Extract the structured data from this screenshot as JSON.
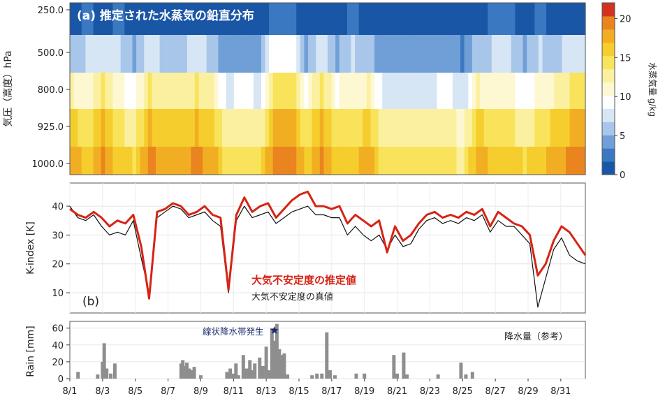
{
  "chart_data": [
    {
      "type": "heatmap",
      "title": "(a) 推定された水蒸気の鉛直分布",
      "ylabel": "気圧（高度）hPa",
      "yticks": [
        "250.0",
        "500.0",
        "800.0",
        "925.0",
        "1000.0"
      ],
      "colorbar": {
        "label": "水蒸気量 g/kg",
        "range": [
          0,
          22
        ],
        "ticks": [
          "0",
          "5",
          "10",
          "15",
          "20"
        ],
        "colors": [
          "#1a56a6",
          "#3a78c2",
          "#6f9fd6",
          "#a7c6e9",
          "#d6e6f5",
          "#ffffff",
          "#fdf8d2",
          "#fbf0a0",
          "#f8e35a",
          "#f5cd2c",
          "#f2ae22",
          "#e9841e",
          "#d2321f"
        ]
      },
      "columns_per_day": 4,
      "profiles": [
        [
          2,
          7,
          11,
          14,
          16
        ],
        [
          1,
          5,
          9,
          13,
          15
        ],
        [
          1,
          6,
          12,
          16,
          18
        ],
        [
          1,
          4,
          8,
          12,
          14
        ],
        [
          1,
          8,
          14,
          17,
          19
        ],
        [
          2,
          10,
          15,
          18,
          20
        ],
        [
          1,
          5,
          10,
          14,
          16
        ],
        [
          1,
          3,
          7,
          11,
          13
        ]
      ],
      "day_pattern": [
        2,
        0,
        4,
        0,
        1,
        4,
        2,
        2,
        4,
        2,
        3,
        1,
        3,
        5,
        5,
        6,
        4,
        6,
        0,
        2,
        3,
        3,
        3,
        3,
        1,
        7,
        2,
        0,
        0,
        1,
        0,
        2,
        4
      ]
    },
    {
      "type": "line",
      "ylabel": "K-index [K]",
      "ylim": [
        3,
        48
      ],
      "yticks": [
        10,
        20,
        30,
        40
      ],
      "label": "(b)",
      "series": [
        {
          "name": "大気不安定度の推定値",
          "color": "#d62415",
          "values": [
            39,
            37,
            36,
            38,
            36,
            33,
            35,
            34,
            37,
            26,
            8,
            38,
            39,
            41,
            40,
            37,
            38,
            40,
            37,
            36,
            11,
            37,
            43,
            38,
            40,
            41,
            36,
            39,
            42,
            44,
            45,
            40,
            40,
            39,
            40,
            34,
            37,
            35,
            33,
            35,
            24,
            33,
            28,
            30,
            34,
            37,
            38,
            36,
            37,
            36,
            38,
            37,
            39,
            33,
            38,
            36,
            34,
            33,
            30,
            16,
            20,
            28,
            33,
            31,
            27,
            23
          ]
        },
        {
          "name": "大気不安定度の真値",
          "color": "#111111",
          "values": [
            40,
            36,
            35,
            37,
            33,
            30,
            31,
            30,
            35,
            22,
            10,
            36,
            38,
            40,
            39,
            36,
            37,
            38,
            35,
            33,
            10,
            35,
            40,
            36,
            37,
            38,
            34,
            36,
            38,
            39,
            40,
            37,
            37,
            36,
            36,
            30,
            33,
            30,
            28,
            30,
            25,
            30,
            26,
            27,
            32,
            35,
            36,
            34,
            35,
            34,
            36,
            35,
            37,
            31,
            35,
            33,
            33,
            30,
            27,
            5,
            15,
            25,
            29,
            23,
            21,
            20
          ]
        }
      ]
    },
    {
      "type": "bar",
      "ylabel": "Rain [mm]",
      "ylim": [
        0,
        68
      ],
      "yticks": [
        0,
        20,
        40,
        60
      ],
      "xlabels": [
        "8/1",
        "8/3",
        "8/5",
        "8/7",
        "8/9",
        "8/11",
        "8/13",
        "8/15",
        "8/17",
        "8/19",
        "8/21",
        "8/23",
        "8/25",
        "8/27",
        "8/29",
        "8/31"
      ],
      "legend": "降水量（参考）",
      "annotation": "線状降水帯発生",
      "star_at_day": 13.5,
      "bars": [
        [
          1.5,
          8
        ],
        [
          2.7,
          5
        ],
        [
          3.0,
          20
        ],
        [
          3.1,
          42
        ],
        [
          3.25,
          12
        ],
        [
          3.5,
          6
        ],
        [
          3.75,
          18
        ],
        [
          7.8,
          18
        ],
        [
          7.9,
          22
        ],
        [
          8.0,
          15
        ],
        [
          8.15,
          19
        ],
        [
          8.3,
          12
        ],
        [
          8.45,
          10
        ],
        [
          8.6,
          14
        ],
        [
          9.0,
          4
        ],
        [
          10.6,
          8
        ],
        [
          10.8,
          12
        ],
        [
          11.0,
          6
        ],
        [
          11.15,
          18
        ],
        [
          11.3,
          4
        ],
        [
          11.6,
          28
        ],
        [
          11.8,
          12
        ],
        [
          12.0,
          22
        ],
        [
          12.15,
          10
        ],
        [
          12.3,
          18
        ],
        [
          12.6,
          25
        ],
        [
          12.8,
          15
        ],
        [
          13.0,
          38
        ],
        [
          13.15,
          10
        ],
        [
          13.35,
          60
        ],
        [
          13.5,
          45
        ],
        [
          13.65,
          65
        ],
        [
          13.8,
          35
        ],
        [
          13.95,
          28
        ],
        [
          14.1,
          30
        ],
        [
          14.3,
          5
        ],
        [
          15.8,
          4
        ],
        [
          16.1,
          6
        ],
        [
          16.4,
          6
        ],
        [
          16.7,
          55
        ],
        [
          16.9,
          10
        ],
        [
          17.2,
          4
        ],
        [
          18.5,
          6
        ],
        [
          19.0,
          6
        ],
        [
          20.8,
          28
        ],
        [
          21.0,
          6
        ],
        [
          21.4,
          31
        ],
        [
          21.6,
          5
        ],
        [
          23.5,
          5
        ],
        [
          24.9,
          19
        ],
        [
          25.2,
          5
        ],
        [
          25.6,
          8
        ]
      ]
    }
  ]
}
